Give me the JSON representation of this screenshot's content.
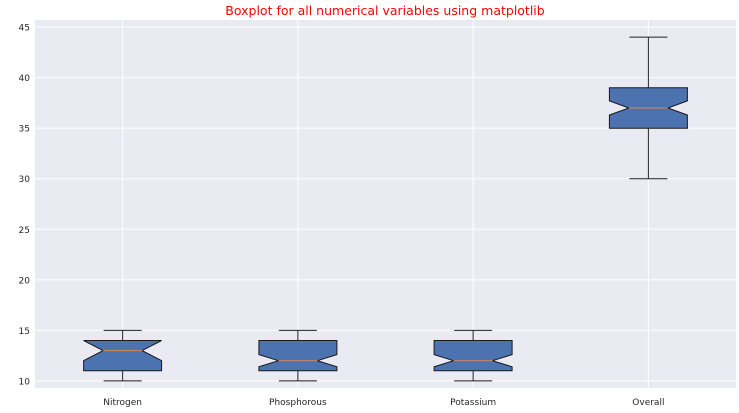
{
  "colors": {
    "background": "#ffffff",
    "plot_area": "#eaeaf2",
    "grid": "#ffffff",
    "title": "#ff0000",
    "box_fill": "#4c72b0",
    "box_edge": "#1a1a1a",
    "median": "#dd8452",
    "whisker": "#222222",
    "tick_label": "#262626"
  },
  "chart_data": {
    "type": "box",
    "title": "Boxplot for all numerical variables using matplotlib",
    "xlabel": "",
    "ylabel": "",
    "ylim": [
      9.3,
      45.7
    ],
    "yticks": [
      10,
      15,
      20,
      25,
      30,
      35,
      40,
      45
    ],
    "ytick_labels": [
      "10",
      "15",
      "20",
      "25",
      "30",
      "35",
      "40",
      "45"
    ],
    "grid": true,
    "legend": "none",
    "notched": true,
    "categories": [
      "Nitrogen",
      "Phosphorous",
      "Potassium",
      "Overall"
    ],
    "boxes": [
      {
        "label": "Nitrogen",
        "whisker_low": 10,
        "q1": 11,
        "median": 13,
        "q3": 14,
        "whisker_high": 15,
        "notch_low": 12.0,
        "notch_high": 14.0
      },
      {
        "label": "Phosphorous",
        "whisker_low": 10,
        "q1": 11,
        "median": 12,
        "q3": 14,
        "whisker_high": 15,
        "notch_low": 11.4,
        "notch_high": 12.6
      },
      {
        "label": "Potassium",
        "whisker_low": 10,
        "q1": 11,
        "median": 12,
        "q3": 14,
        "whisker_high": 15,
        "notch_low": 11.4,
        "notch_high": 12.6
      },
      {
        "label": "Overall",
        "whisker_low": 30,
        "q1": 35,
        "median": 37,
        "q3": 39,
        "whisker_high": 44,
        "notch_low": 36.3,
        "notch_high": 37.7
      }
    ]
  }
}
